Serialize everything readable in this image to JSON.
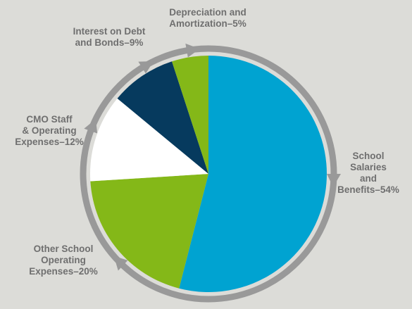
{
  "chart_data": {
    "type": "pie",
    "title": "",
    "slices": [
      {
        "label": "School Salaries and Benefits",
        "value": 54,
        "value_label": "54%",
        "color": "#00a3d1"
      },
      {
        "label": "Other School Operating Expenses",
        "value": 20,
        "value_label": "20%",
        "color": "#84b818"
      },
      {
        "label": "CMO Staff & Operating Expenses",
        "value": 12,
        "value_label": "12%",
        "color": "#ffffff"
      },
      {
        "label": "Interest on Debt and Bonds",
        "value": 9,
        "value_label": "9%",
        "color": "#063a5e"
      },
      {
        "label": "Depreciation and Amortization",
        "value": 5,
        "value_label": "5%",
        "color": "#84b818"
      }
    ],
    "label_lines": [
      [
        "School",
        "Salaries",
        "and",
        "Benefits–54%"
      ],
      [
        "Other School",
        "Operating",
        "Expenses–20%"
      ],
      [
        "CMO Staff",
        "& Operating",
        "Expenses–12%"
      ],
      [
        "Interest on Debt",
        "and Bonds–9%"
      ],
      [
        "Depreciation and",
        "Amortization–5%"
      ]
    ],
    "start_angle_deg": 0,
    "direction": "clockwise",
    "ring_color": "#999999",
    "label_color": "#6f6f6f",
    "background": "#dcdcd8"
  }
}
